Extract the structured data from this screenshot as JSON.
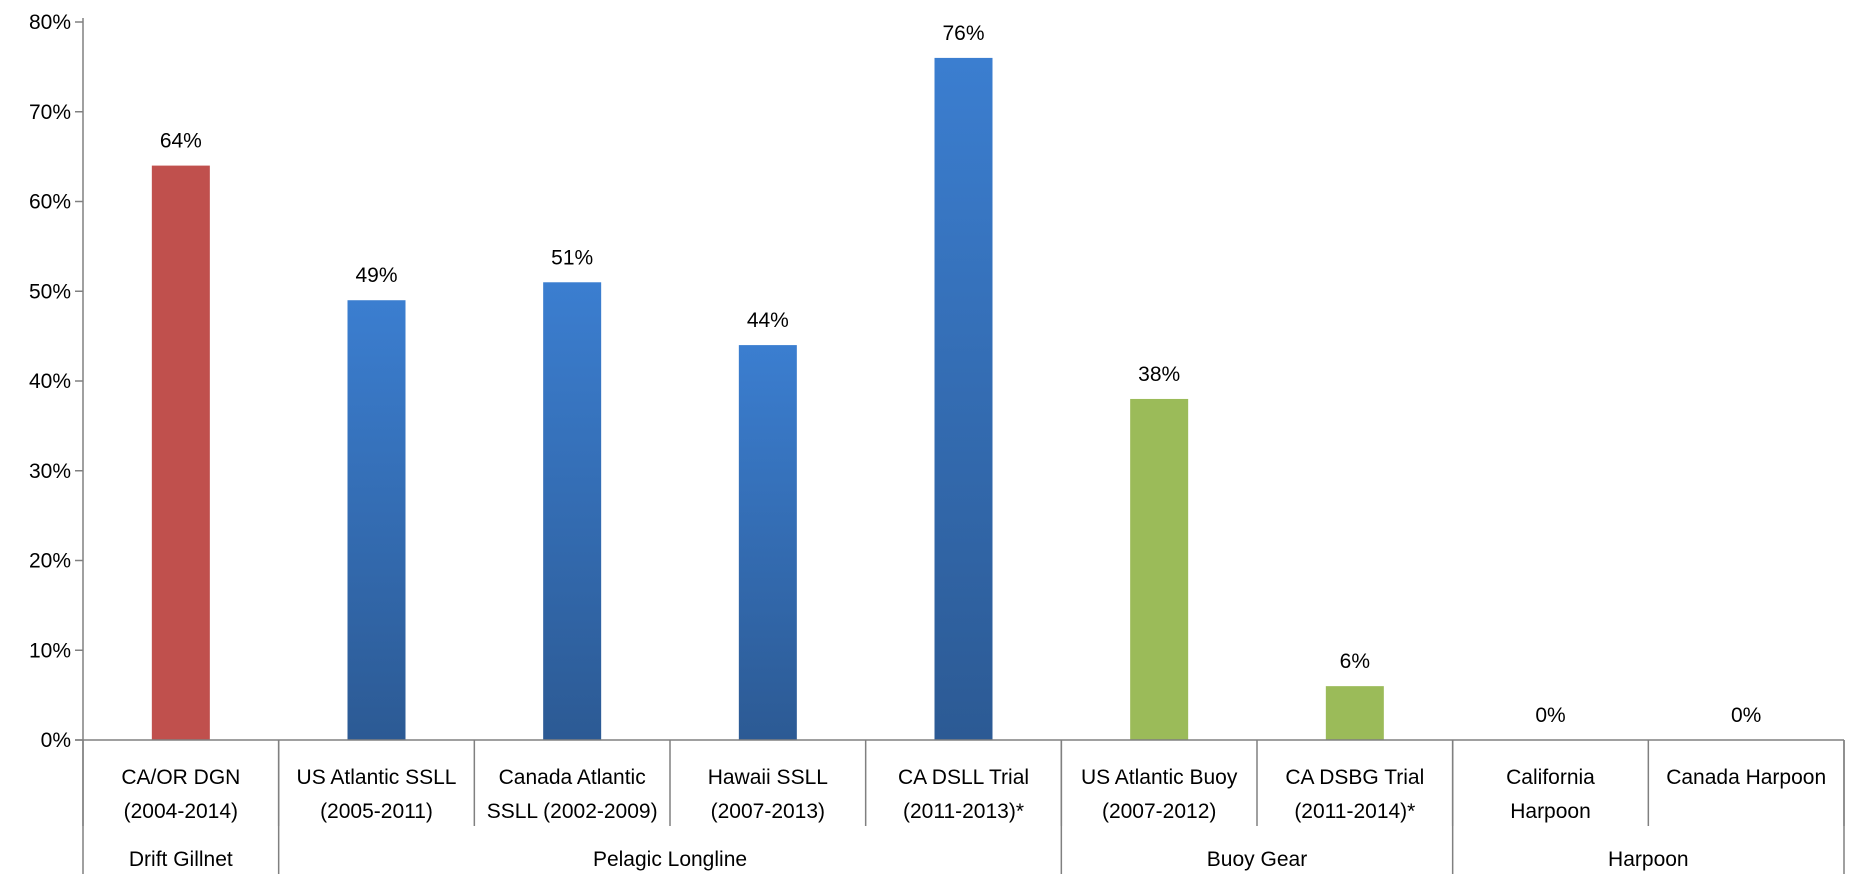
{
  "chart_data": {
    "type": "bar",
    "title": "",
    "xlabel": "",
    "ylabel": "",
    "ylim": [
      0,
      80
    ],
    "y_tick_values": [
      0,
      10,
      20,
      30,
      40,
      50,
      60,
      70,
      80
    ],
    "y_tick_suffix": "%",
    "grid": false,
    "categories": [
      {
        "lines": [
          "CA/OR DGN",
          "(2004-2014)"
        ],
        "group": "Drift Gillnet",
        "value": 64,
        "label": "64%",
        "color": "#c0504d"
      },
      {
        "lines": [
          "US Atlantic SSLL",
          "(2005-2011)"
        ],
        "group": "Pelagic Longline",
        "value": 49,
        "label": "49%",
        "color": "#3a7cc8"
      },
      {
        "lines": [
          "Canada Atlantic",
          "SSLL (2002-2009)"
        ],
        "group": "Pelagic Longline",
        "value": 51,
        "label": "51%",
        "color": "#3a7cc8"
      },
      {
        "lines": [
          "Hawaii SSLL",
          "(2007-2013)"
        ],
        "group": "Pelagic Longline",
        "value": 44,
        "label": "44%",
        "color": "#3a7cc8"
      },
      {
        "lines": [
          "CA DSLL Trial",
          "(2011-2013)*"
        ],
        "group": "Pelagic Longline",
        "value": 76,
        "label": "76%",
        "color": "#3a7cc8"
      },
      {
        "lines": [
          "US Atlantic Buoy",
          "(2007-2012)"
        ],
        "group": "Buoy Gear",
        "value": 38,
        "label": "38%",
        "color": "#9bbb59"
      },
      {
        "lines": [
          "CA DSBG Trial",
          "(2011-2014)*"
        ],
        "group": "Buoy Gear",
        "value": 6,
        "label": "6%",
        "color": "#9bbb59"
      },
      {
        "lines": [
          "California",
          "Harpoon"
        ],
        "group": "Harpoon",
        "value": 0,
        "label": "0%",
        "color": "#9bbb59"
      },
      {
        "lines": [
          "Canada Harpoon"
        ],
        "group": "Harpoon",
        "value": 0,
        "label": "0%",
        "color": "#9bbb59"
      }
    ],
    "groups": [
      {
        "name": "Drift Gillnet",
        "count": 1
      },
      {
        "name": "Pelagic Longline",
        "count": 4
      },
      {
        "name": "Buoy Gear",
        "count": 2
      },
      {
        "name": "Harpoon",
        "count": 2
      }
    ]
  }
}
